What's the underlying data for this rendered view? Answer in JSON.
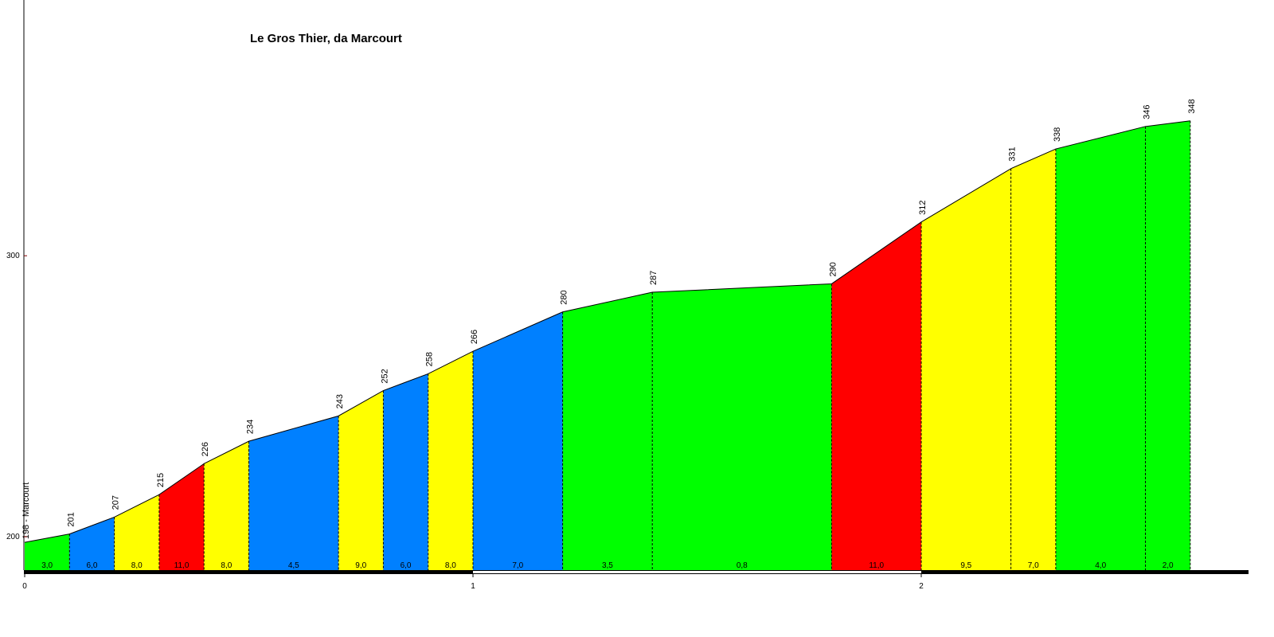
{
  "chart_data": {
    "type": "profile",
    "title": "Le Gros Thier, da Marcourt",
    "x": [
      0,
      0.1,
      0.2,
      0.3,
      0.4,
      0.5,
      0.7,
      0.8,
      0.9,
      1.0,
      1.2,
      1.4,
      1.8,
      2.0,
      2.2,
      2.3,
      2.5,
      2.6
    ],
    "values": [
      198,
      201,
      207,
      215,
      226,
      234,
      243,
      252,
      258,
      266,
      280,
      287,
      290,
      312,
      331,
      338,
      346,
      348
    ],
    "value_labels": [
      "198 - Marcourt",
      "201",
      "207",
      "215",
      "226",
      "234",
      "243",
      "252",
      "258",
      "266",
      "280",
      "287",
      "290",
      "312",
      "331",
      "338",
      "346",
      "348"
    ],
    "segments": {
      "values": [
        3,
        6,
        8,
        11,
        8,
        4.5,
        9,
        6,
        8,
        7,
        3.5,
        0.8,
        11,
        9.5,
        7,
        4,
        2
      ],
      "value_labels": [
        "3,0",
        "6,0",
        "8,0",
        "11,0",
        "8,0",
        "4,5",
        "9,0",
        "6,0",
        "8,0",
        "7,0",
        "3,5",
        "0,8",
        "11,0",
        "9,5",
        "7,0",
        "4,0",
        "2,0"
      ],
      "colors": [
        "#00ff00",
        "#0080ff",
        "#ffff00",
        "#ff0000",
        "#ffff00",
        "#0080ff",
        "#ffff00",
        "#0080ff",
        "#ffff00",
        "#0080ff",
        "#00ff00",
        "#00ff00",
        "#ff0000",
        "#ffff00",
        "#ffff00",
        "#00ff00",
        "#00ff00"
      ]
    },
    "xlim": [
      0,
      2.73
    ],
    "xticks": [
      0,
      1,
      2
    ],
    "ylim": [
      187,
      391
    ],
    "yticks": [
      200,
      300
    ]
  }
}
